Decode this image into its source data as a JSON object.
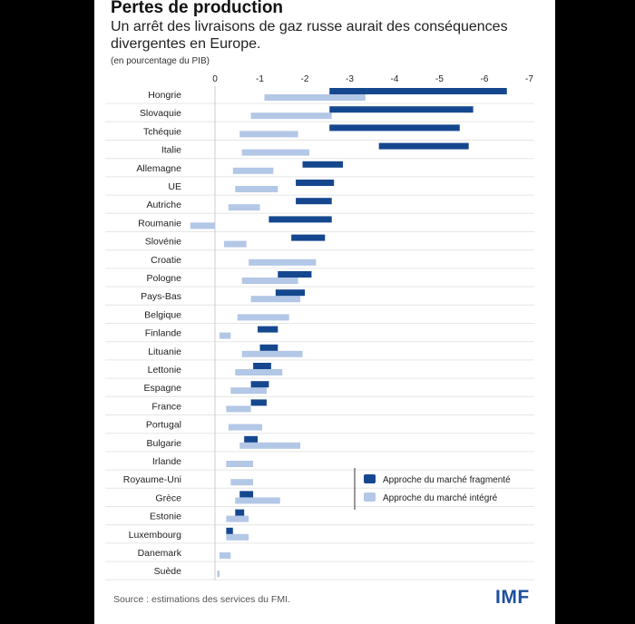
{
  "header": {
    "title": "Pertes de production",
    "subtitle": "Un arrêt des livraisons de gaz russe aurait des conséquences divergentes en Europe.",
    "unit": "(en pourcentage du PIB)"
  },
  "footer": {
    "source": "Source : estimations des services du FMI.",
    "logo": "IMF"
  },
  "colors": {
    "fragmented": "#15478f",
    "integrated": "#b3c7e6",
    "gridline": "#e6e6e6",
    "axis": "#cccccc"
  },
  "chart_data": {
    "type": "bar",
    "orientation": "horizontal-floating",
    "xlim": [
      0,
      -7
    ],
    "xticks": [
      0,
      -1,
      -2,
      -3,
      -4,
      -5,
      -6,
      -7
    ],
    "tick_labels": [
      "0",
      "-1",
      "-2",
      "-3",
      "-4",
      "-5",
      "-6",
      "-7"
    ],
    "grid": true,
    "legend_position": "bottom-right",
    "categories": [
      "Hongrie",
      "Slovaquie",
      "Tchéquie",
      "Italie",
      "Allemagne",
      "UE",
      "Autriche",
      "Roumanie",
      "Slovénie",
      "Croatie",
      "Pologne",
      "Pays-Bas",
      "Belgique",
      "Finlande",
      "Lituanie",
      "Lettonie",
      "Espagne",
      "France",
      "Portugal",
      "Bulgarie",
      "Irlande",
      "Royaume-Uni",
      "Grèce",
      "Estonie",
      "Luxembourg",
      "Danemark",
      "Suède"
    ],
    "series": [
      {
        "name": "Approche du marché fragmenté",
        "ranges": [
          [
            -2.55,
            -6.5
          ],
          [
            -2.55,
            -5.75
          ],
          [
            -2.55,
            -5.45
          ],
          [
            -3.65,
            -5.65
          ],
          [
            -1.95,
            -2.85
          ],
          [
            -1.8,
            -2.65
          ],
          [
            -1.8,
            -2.6
          ],
          [
            -1.2,
            -2.6
          ],
          [
            -1.7,
            -2.45
          ],
          null,
          [
            -1.4,
            -2.15
          ],
          [
            -1.35,
            -2.0
          ],
          null,
          [
            -0.95,
            -1.4
          ],
          [
            -1.0,
            -1.4
          ],
          [
            -0.85,
            -1.25
          ],
          [
            -0.8,
            -1.2
          ],
          [
            -0.8,
            -1.15
          ],
          null,
          [
            -0.65,
            -0.95
          ],
          null,
          null,
          [
            -0.55,
            -0.85
          ],
          [
            -0.45,
            -0.65
          ],
          [
            -0.25,
            -0.4
          ],
          null,
          null
        ]
      },
      {
        "name": "Approche du marché intégré",
        "ranges": [
          [
            -1.1,
            -3.35
          ],
          [
            -0.8,
            -2.6
          ],
          [
            -0.55,
            -1.85
          ],
          [
            -0.6,
            -2.1
          ],
          [
            -0.4,
            -1.3
          ],
          [
            -0.45,
            -1.4
          ],
          [
            -0.3,
            -1.0
          ],
          [
            0.55,
            0.0
          ],
          [
            -0.2,
            -0.7
          ],
          [
            -0.75,
            -2.25
          ],
          [
            -0.6,
            -1.85
          ],
          [
            -0.8,
            -1.9
          ],
          [
            -0.5,
            -1.65
          ],
          [
            -0.1,
            -0.35
          ],
          [
            -0.6,
            -1.95
          ],
          [
            -0.45,
            -1.5
          ],
          [
            -0.35,
            -1.15
          ],
          [
            -0.25,
            -0.8
          ],
          [
            -0.3,
            -1.05
          ],
          [
            -0.55,
            -1.9
          ],
          [
            -0.25,
            -0.85
          ],
          [
            -0.35,
            -0.85
          ],
          [
            -0.45,
            -1.45
          ],
          [
            -0.25,
            -0.75
          ],
          [
            -0.25,
            -0.75
          ],
          [
            -0.1,
            -0.35
          ],
          [
            -0.05,
            -0.1
          ]
        ]
      }
    ]
  }
}
